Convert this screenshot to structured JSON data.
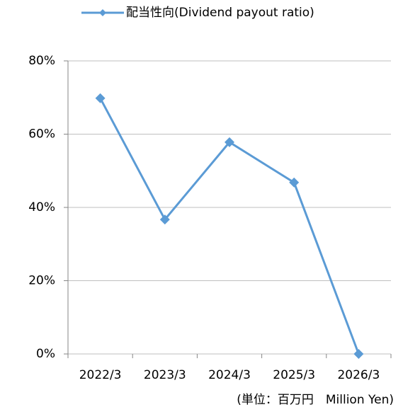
{
  "chart_data": {
    "type": "line",
    "categories": [
      "2022/3",
      "2023/3",
      "2024/3",
      "2025/3",
      "2026/3"
    ],
    "series": [
      {
        "name": "配当性向(Dividend payout ratio)",
        "color": "#5b9bd5",
        "values": [
          69.8,
          36.7,
          57.8,
          46.8,
          0
        ]
      }
    ],
    "ylim": [
      0,
      80
    ],
    "yticks": [
      {
        "value": 0,
        "label": "0%"
      },
      {
        "value": 20,
        "label": "20%"
      },
      {
        "value": 40,
        "label": "40%"
      },
      {
        "value": 60,
        "label": "60%"
      },
      {
        "value": 80,
        "label": "80%"
      }
    ],
    "grid": true,
    "legend": "top",
    "annotation": "(単位：百万円　Million Yen)"
  }
}
